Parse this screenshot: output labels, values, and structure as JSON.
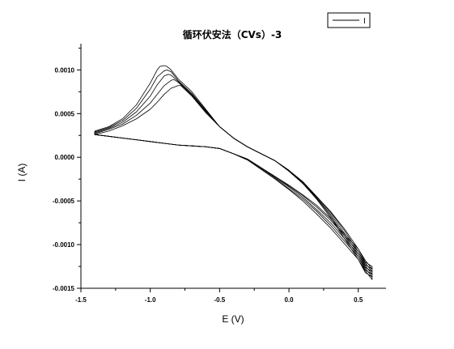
{
  "chart_data": {
    "type": "line",
    "title": "循环伏安法（CVs）-3",
    "xlabel": "E (V)",
    "ylabel": "I (A)",
    "xlim": [
      -1.5,
      0.7
    ],
    "ylim": [
      -0.0015,
      0.0013
    ],
    "xticks": [
      -1.5,
      -1.0,
      -0.5,
      0.0,
      0.5
    ],
    "xtick_labels": [
      "-1.5",
      "-1.0",
      "-0.5",
      "0.0",
      "0.5"
    ],
    "yticks": [
      -0.0015,
      -0.001,
      -0.0005,
      0.0,
      0.0005,
      0.001
    ],
    "ytick_labels": [
      "-0.0015",
      "-0.0010",
      "-0.0005",
      "0.0000",
      "0.0005",
      "0.0010"
    ],
    "legend": {
      "position": "top-right",
      "entries": [
        "I"
      ]
    },
    "grid": false,
    "series_color": "#000000",
    "series": [
      {
        "x": [
          -1.4,
          -1.3,
          -1.2,
          -1.1,
          -1.0,
          -0.95,
          -0.93,
          -0.9,
          -0.88,
          -0.85,
          -0.8,
          -0.7,
          -0.6,
          -0.5,
          -0.4,
          -0.3,
          -0.2,
          -0.1,
          0.0,
          0.1,
          0.2,
          0.3,
          0.4,
          0.5,
          0.55,
          0.6,
          0.6,
          0.55,
          0.5,
          0.4,
          0.3,
          0.2,
          0.1,
          0.0,
          -0.1,
          -0.2,
          -0.3,
          -0.4,
          -0.5,
          -0.6,
          -0.7,
          -0.8,
          -0.9,
          -1.0,
          -1.1,
          -1.2,
          -1.3,
          -1.4
        ],
        "y": [
          0.0003,
          0.00035,
          0.00044,
          0.0006,
          0.00085,
          0.001,
          0.00104,
          0.00105,
          0.00104,
          0.001,
          0.0009,
          0.00075,
          0.00055,
          0.00035,
          0.00022,
          0.00012,
          4e-05,
          -4e-05,
          -0.00015,
          -0.00028,
          -0.00045,
          -0.00062,
          -0.00082,
          -0.00105,
          -0.0012,
          -0.00125,
          -0.00128,
          -0.00118,
          -0.00105,
          -0.00088,
          -0.0007,
          -0.00055,
          -0.00043,
          -0.00032,
          -0.00022,
          -0.00012,
          -2e-05,
          4e-05,
          0.0001,
          0.00012,
          0.00013,
          0.00014,
          0.00016,
          0.00018,
          0.0002,
          0.00022,
          0.00024,
          0.00026
        ]
      },
      {
        "x": [
          -1.4,
          -1.3,
          -1.2,
          -1.1,
          -1.0,
          -0.95,
          -0.9,
          -0.88,
          -0.85,
          -0.8,
          -0.7,
          -0.6,
          -0.5,
          -0.4,
          -0.3,
          -0.2,
          -0.1,
          0.0,
          0.1,
          0.2,
          0.3,
          0.4,
          0.5,
          0.55,
          0.6,
          0.6,
          0.55,
          0.5,
          0.4,
          0.3,
          0.2,
          0.1,
          0.0,
          -0.1,
          -0.2,
          -0.3,
          -0.4,
          -0.5,
          -0.6,
          -0.7,
          -0.8,
          -0.9,
          -1.0,
          -1.1,
          -1.2,
          -1.3,
          -1.4
        ],
        "y": [
          0.00029,
          0.00034,
          0.00042,
          0.00056,
          0.00078,
          0.00092,
          0.00099,
          0.001,
          0.00098,
          0.00088,
          0.00073,
          0.00054,
          0.00035,
          0.00022,
          0.00012,
          4e-05,
          -4e-05,
          -0.00015,
          -0.00028,
          -0.00045,
          -0.00063,
          -0.00084,
          -0.00108,
          -0.00123,
          -0.00128,
          -0.00131,
          -0.00121,
          -0.00108,
          -0.0009,
          -0.00072,
          -0.00057,
          -0.00044,
          -0.00033,
          -0.00022,
          -0.00012,
          -2e-05,
          4e-05,
          0.0001,
          0.00012,
          0.00013,
          0.00014,
          0.00016,
          0.00018,
          0.0002,
          0.00022,
          0.00024,
          0.00026
        ]
      },
      {
        "x": [
          -1.4,
          -1.3,
          -1.2,
          -1.1,
          -1.0,
          -0.95,
          -0.9,
          -0.87,
          -0.85,
          -0.8,
          -0.7,
          -0.6,
          -0.5,
          -0.4,
          -0.3,
          -0.2,
          -0.1,
          0.0,
          0.1,
          0.2,
          0.3,
          0.4,
          0.5,
          0.55,
          0.6,
          0.6,
          0.55,
          0.5,
          0.4,
          0.3,
          0.2,
          0.1,
          0.0,
          -0.1,
          -0.2,
          -0.3,
          -0.4,
          -0.5,
          -0.6,
          -0.7,
          -0.8,
          -0.9,
          -1.0,
          -1.1,
          -1.2,
          -1.3,
          -1.4
        ],
        "y": [
          0.00028,
          0.00033,
          0.0004,
          0.00052,
          0.0007,
          0.00083,
          0.00093,
          0.00095,
          0.00094,
          0.00087,
          0.00072,
          0.00053,
          0.00035,
          0.00022,
          0.00012,
          4e-05,
          -4e-05,
          -0.00015,
          -0.00029,
          -0.00046,
          -0.00065,
          -0.00087,
          -0.00111,
          -0.00126,
          -0.00131,
          -0.00134,
          -0.00124,
          -0.00111,
          -0.00093,
          -0.00075,
          -0.0006,
          -0.00046,
          -0.00034,
          -0.00023,
          -0.00012,
          -2e-05,
          4e-05,
          0.0001,
          0.00012,
          0.00013,
          0.00014,
          0.00016,
          0.00018,
          0.0002,
          0.00022,
          0.00024,
          0.00026
        ]
      },
      {
        "x": [
          -1.4,
          -1.3,
          -1.2,
          -1.1,
          -1.0,
          -0.95,
          -0.9,
          -0.85,
          -0.83,
          -0.8,
          -0.7,
          -0.6,
          -0.5,
          -0.4,
          -0.3,
          -0.2,
          -0.1,
          0.0,
          0.1,
          0.2,
          0.3,
          0.4,
          0.5,
          0.55,
          0.6,
          0.6,
          0.55,
          0.5,
          0.4,
          0.3,
          0.2,
          0.1,
          0.0,
          -0.1,
          -0.2,
          -0.3,
          -0.4,
          -0.5,
          -0.6,
          -0.7,
          -0.8,
          -0.9,
          -1.0,
          -1.1,
          -1.2,
          -1.3,
          -1.4
        ],
        "y": [
          0.00027,
          0.00032,
          0.00038,
          0.00048,
          0.00062,
          0.00072,
          0.00082,
          0.00088,
          0.00089,
          0.00086,
          0.00071,
          0.00052,
          0.00035,
          0.00022,
          0.00012,
          4e-05,
          -4e-05,
          -0.00016,
          -0.0003,
          -0.00047,
          -0.00067,
          -0.0009,
          -0.00114,
          -0.00129,
          -0.00134,
          -0.00137,
          -0.00127,
          -0.00114,
          -0.00096,
          -0.00078,
          -0.00062,
          -0.00048,
          -0.00036,
          -0.00024,
          -0.00013,
          -3e-05,
          4e-05,
          0.0001,
          0.00012,
          0.00013,
          0.00014,
          0.00016,
          0.00018,
          0.0002,
          0.00022,
          0.00024,
          0.00026
        ]
      },
      {
        "x": [
          -1.4,
          -1.3,
          -1.2,
          -1.1,
          -1.0,
          -0.95,
          -0.9,
          -0.85,
          -0.8,
          -0.78,
          -0.7,
          -0.6,
          -0.5,
          -0.4,
          -0.3,
          -0.2,
          -0.1,
          0.0,
          0.1,
          0.2,
          0.3,
          0.4,
          0.5,
          0.55,
          0.6,
          0.6,
          0.55,
          0.5,
          0.4,
          0.3,
          0.2,
          0.1,
          0.0,
          -0.1,
          -0.2,
          -0.3,
          -0.4,
          -0.5,
          -0.6,
          -0.7,
          -0.8,
          -0.9,
          -1.0,
          -1.1,
          -1.2,
          -1.3,
          -1.4
        ],
        "y": [
          0.00026,
          0.0003,
          0.00036,
          0.00044,
          0.00055,
          0.00063,
          0.00072,
          0.00079,
          0.00082,
          0.00082,
          0.0007,
          0.00051,
          0.00035,
          0.00022,
          0.00012,
          4e-05,
          -4e-05,
          -0.00016,
          -0.0003,
          -0.00048,
          -0.00069,
          -0.00093,
          -0.00117,
          -0.00132,
          -0.00137,
          -0.0014,
          -0.0013,
          -0.00117,
          -0.00099,
          -0.00081,
          -0.00065,
          -0.0005,
          -0.00037,
          -0.00025,
          -0.00014,
          -3e-05,
          4e-05,
          0.0001,
          0.00012,
          0.00013,
          0.00014,
          0.00016,
          0.00018,
          0.0002,
          0.00022,
          0.00024,
          0.00026
        ]
      }
    ]
  }
}
